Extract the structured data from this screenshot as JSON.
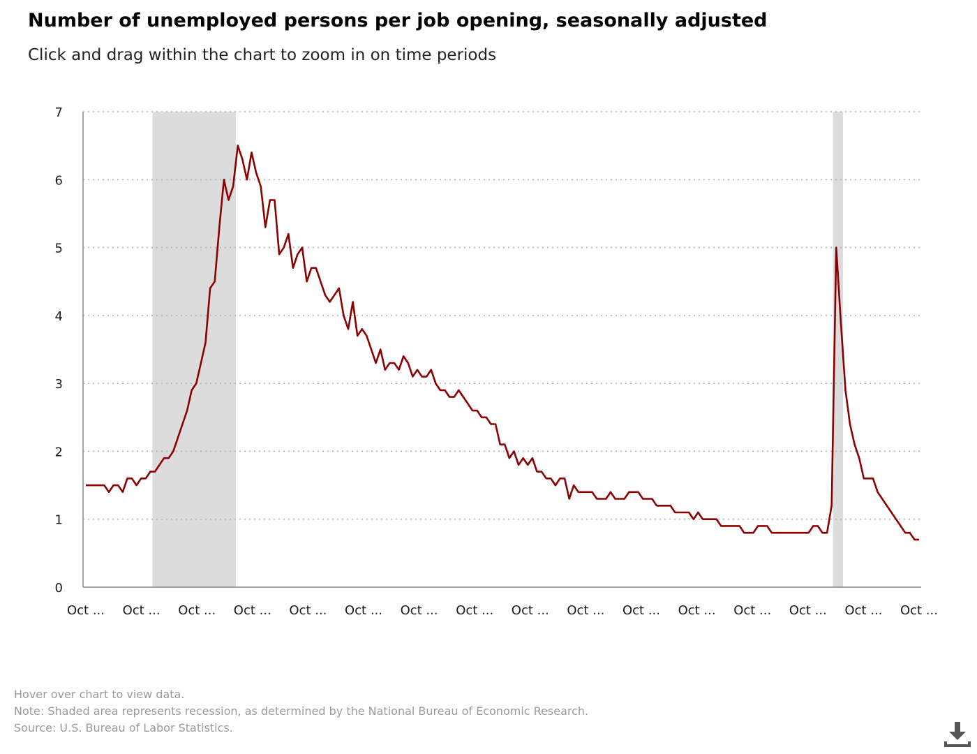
{
  "title": "Number of unemployed persons per job opening, seasonally adjusted",
  "subtitle": "Click and drag within the chart to zoom in on time periods",
  "footnotes": {
    "hover": "Hover over chart to view data.",
    "note": "Note: Shaded area represents recession, as determined by the National Bureau of Economic Research.",
    "source": "Source: U.S. Bureau of Labor Statistics."
  },
  "icons": {
    "download": "download-icon"
  },
  "colors": {
    "line": "#8b0000",
    "recession": "#dcdcdc",
    "grid": "#b0b0b0",
    "axis": "#888888"
  },
  "chart_data": {
    "type": "line",
    "title": "Number of unemployed persons per job opening, seasonally adjusted",
    "xlabel": "",
    "ylabel": "",
    "ylim": [
      0,
      7
    ],
    "yticks": [
      0,
      1,
      2,
      3,
      4,
      5,
      6,
      7
    ],
    "xtick_labels": [
      "Oct ...",
      "Oct ...",
      "Oct ...",
      "Oct ...",
      "Oct ...",
      "Oct ...",
      "Oct ...",
      "Oct ...",
      "Oct ...",
      "Oct ...",
      "Oct ...",
      "Oct ...",
      "Oct ...",
      "Oct ...",
      "Oct ...",
      "Oct ..."
    ],
    "x_start_tick_index": 0,
    "x_end_tick_index": 15,
    "grid": "horizontal dotted",
    "recessions": [
      {
        "start_tick_index": 1.2,
        "end_tick_index": 2.7
      },
      {
        "start_tick_index": 13.45,
        "end_tick_index": 13.63
      }
    ],
    "series": [
      {
        "values": [
          1.5,
          1.5,
          1.5,
          1.5,
          1.5,
          1.4,
          1.5,
          1.5,
          1.4,
          1.6,
          1.6,
          1.5,
          1.6,
          1.6,
          1.7,
          1.7,
          1.8,
          1.9,
          1.9,
          2.0,
          2.2,
          2.4,
          2.6,
          2.9,
          3.0,
          3.3,
          3.6,
          4.4,
          4.5,
          5.3,
          6.0,
          5.7,
          5.9,
          6.5,
          6.3,
          6.0,
          6.4,
          6.1,
          5.9,
          5.3,
          5.7,
          5.7,
          4.9,
          5.0,
          5.2,
          4.7,
          4.9,
          5.0,
          4.5,
          4.7,
          4.7,
          4.5,
          4.3,
          4.2,
          4.3,
          4.4,
          4.0,
          3.8,
          4.2,
          3.7,
          3.8,
          3.7,
          3.5,
          3.3,
          3.5,
          3.2,
          3.3,
          3.3,
          3.2,
          3.4,
          3.3,
          3.1,
          3.2,
          3.1,
          3.1,
          3.2,
          3.0,
          2.9,
          2.9,
          2.8,
          2.8,
          2.9,
          2.8,
          2.7,
          2.6,
          2.6,
          2.5,
          2.5,
          2.4,
          2.4,
          2.1,
          2.1,
          1.9,
          2.0,
          1.8,
          1.9,
          1.8,
          1.9,
          1.7,
          1.7,
          1.6,
          1.6,
          1.5,
          1.6,
          1.6,
          1.3,
          1.5,
          1.4,
          1.4,
          1.4,
          1.4,
          1.3,
          1.3,
          1.3,
          1.4,
          1.3,
          1.3,
          1.3,
          1.4,
          1.4,
          1.4,
          1.3,
          1.3,
          1.3,
          1.2,
          1.2,
          1.2,
          1.2,
          1.1,
          1.1,
          1.1,
          1.1,
          1.0,
          1.1,
          1.0,
          1.0,
          1.0,
          1.0,
          0.9,
          0.9,
          0.9,
          0.9,
          0.9,
          0.8,
          0.8,
          0.8,
          0.9,
          0.9,
          0.9,
          0.8,
          0.8,
          0.8,
          0.8,
          0.8,
          0.8,
          0.8,
          0.8,
          0.8,
          0.9,
          0.9,
          0.8,
          0.8,
          1.2,
          5.0,
          3.9,
          2.9,
          2.4,
          2.1,
          1.9,
          1.6,
          1.6,
          1.6,
          1.4,
          1.3,
          1.2,
          1.1,
          1.0,
          0.9,
          0.8,
          0.8,
          0.7,
          0.7
        ]
      }
    ]
  }
}
